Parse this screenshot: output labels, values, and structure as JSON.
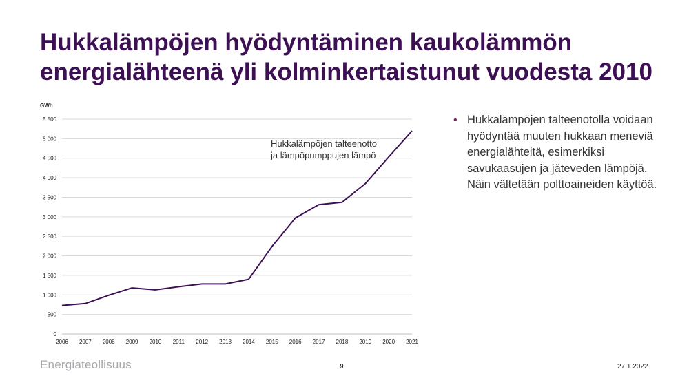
{
  "slide": {
    "title": "Hukkalämpöjen hyödyntäminen kaukolämmön energialähteenä yli kolminkertaistunut vuodesta 2010",
    "bullet": "Hukkalämpöjen talteenotolla voidaan hyödyntää muuten hukkaan meneviä energialähteitä, esimerkiksi savukaasujen ja jäteveden lämpöjä. Näin vältetään polttoaineiden käyttöä.",
    "logo": "Energiateollisuus",
    "page_number": "9",
    "date": "27.1.2022"
  },
  "colors": {
    "title": "#3c1053",
    "line": "#3c1053",
    "bullet": "#7a1f5c",
    "gridline": "#d9d9d9"
  },
  "chart_data": {
    "type": "line",
    "ylabel": "GWh",
    "x": [
      "2006",
      "2007",
      "2008",
      "2009",
      "2010",
      "2011",
      "2012",
      "2013",
      "2014",
      "2015",
      "2016",
      "2017",
      "2018",
      "2019",
      "2020",
      "2021"
    ],
    "series": [
      {
        "name": "Hukkalämpöjen talteenotto ja lämpöpumppujen lämpö",
        "name_lines": [
          "Hukkalämpöjen talteenotto",
          "ja lämpöpumppujen lämpö"
        ],
        "values": [
          730,
          780,
          990,
          1180,
          1130,
          1210,
          1280,
          1280,
          1400,
          2240,
          2970,
          3310,
          3370,
          3850,
          4530,
          5200
        ]
      }
    ],
    "yticks": [
      0,
      500,
      1000,
      1500,
      2000,
      2500,
      3000,
      3500,
      4000,
      4500,
      5000,
      5500
    ],
    "ytick_labels": [
      "0",
      "500",
      "1 000",
      "1 500",
      "2 000",
      "2 500",
      "3 000",
      "3 500",
      "4 000",
      "4 500",
      "5 000",
      "5 500"
    ],
    "ylim": [
      0,
      5500
    ],
    "grid": true
  }
}
